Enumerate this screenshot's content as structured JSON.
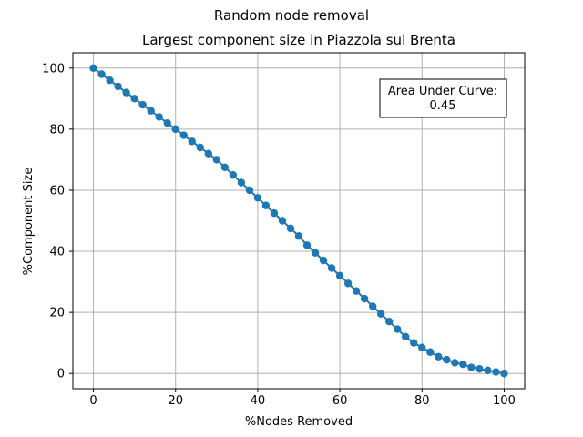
{
  "chart_data": {
    "type": "line",
    "suptitle": "Random node removal",
    "title": "Largest component size in Piazzola sul Brenta",
    "xlabel": "%Nodes Removed",
    "ylabel": "%Component Size",
    "xlim": [
      -5,
      105
    ],
    "ylim": [
      -5,
      105
    ],
    "xticks": [
      0,
      20,
      40,
      60,
      80,
      100
    ],
    "yticks": [
      0,
      20,
      40,
      60,
      80,
      100
    ],
    "grid": true,
    "marker": "circle",
    "series_color": "#1f77b4",
    "annotation": {
      "line1": "Area Under Curve:",
      "line2": "0.45",
      "placement": "top-right"
    },
    "series": [
      {
        "x": [
          0,
          2,
          4,
          6,
          8,
          10,
          12,
          14,
          16,
          18,
          20,
          22,
          24,
          26,
          28,
          30,
          32,
          34,
          36,
          38,
          40,
          42,
          44,
          46,
          48,
          50,
          52,
          54,
          56,
          58,
          60,
          62,
          64,
          66,
          68,
          70,
          72,
          74,
          76,
          78,
          80,
          82,
          84,
          86,
          88,
          90,
          92,
          94,
          96,
          98,
          100
        ],
        "values": [
          100,
          98,
          96,
          94,
          92,
          90,
          88,
          86,
          84,
          82,
          80,
          78,
          76,
          74,
          72,
          70,
          67.5,
          65,
          62.5,
          60,
          57.5,
          55,
          52.5,
          50,
          47.5,
          45,
          42,
          39.5,
          37,
          34.5,
          32,
          29.5,
          27,
          24.5,
          22,
          19.5,
          17,
          14.5,
          12,
          10,
          8.5,
          7,
          5.5,
          4.5,
          3.5,
          3,
          2,
          1.5,
          1,
          0.5,
          0
        ]
      }
    ]
  }
}
